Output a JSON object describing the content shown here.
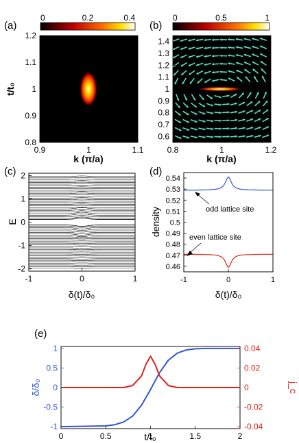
{
  "panels": {
    "a": {
      "label": "(a)"
    },
    "b": {
      "label": "(b)"
    },
    "c": {
      "label": "(c)"
    },
    "d": {
      "label": "(d)"
    },
    "e": {
      "label": "(e)"
    }
  },
  "colors": {
    "blue": "#2f55d6",
    "red": "#e0201b",
    "arrow": "#55e0c0",
    "axis": "#000000"
  },
  "chart_data": [
    {
      "panel": "a",
      "type": "heatmap",
      "xlabel": "k (π/a)",
      "ylabel": "t/t₀",
      "xlim": [
        0.9,
        1.1
      ],
      "ylim": [
        0.8,
        1.2
      ],
      "xticks": [
        "0.9",
        "1",
        "1.1"
      ],
      "yticks": [
        "0.8",
        "0.9",
        "1",
        "1.1",
        "1.2"
      ],
      "colorbar": {
        "ticks": [
          "0",
          "0.2",
          "0.4"
        ],
        "range": [
          0,
          0.4
        ],
        "colormap": "hot"
      },
      "peak": {
        "x": 1.0,
        "y": 1.0,
        "value": 0.4,
        "sigma_x": 0.012,
        "sigma_y": 0.03
      }
    },
    {
      "panel": "b",
      "type": "heatmap",
      "xlabel": "k (π/a)",
      "ylabel": "",
      "xlim": [
        0.8,
        1.2
      ],
      "ylim": [
        0.55,
        1.45
      ],
      "xticks": [
        "0.8",
        "1",
        "1.2"
      ],
      "yticks": [
        "0.6",
        "0.7",
        "0.8",
        "0.9",
        "1",
        "1.1",
        "1.2",
        "1.3",
        "1.4"
      ],
      "colorbar": {
        "ticks": [
          "0",
          "0.5",
          "1"
        ],
        "range": [
          0,
          1
        ],
        "colormap": "hot"
      },
      "peak": {
        "x": 1.0,
        "y": 1.0,
        "value": 1.0,
        "sigma_x": 0.04,
        "sigma_y": 0.006
      },
      "vector_field": "arrows circulating around (1, 1)"
    },
    {
      "panel": "c",
      "type": "line",
      "xlabel": "δ(t)/δ₀",
      "ylabel": "E",
      "xlim": [
        -1,
        1
      ],
      "ylim": [
        -2.1,
        2.1
      ],
      "xticks": [
        "-1",
        "0",
        "1"
      ],
      "yticks": [
        "-2",
        "-1",
        "0",
        "1",
        "2"
      ],
      "levels": {
        "count": 60,
        "range": [
          -2,
          2
        ],
        "gap": 0.12,
        "avoided_crossing": {
          "x": 0,
          "e": [
            0.12,
            -0.12
          ]
        }
      }
    },
    {
      "panel": "d",
      "type": "line",
      "xlabel": "δ(t)/δ₀",
      "ylabel": "density",
      "xlim": [
        -1,
        1
      ],
      "ylim": [
        0.455,
        0.545
      ],
      "xticks": [
        "-1",
        "0",
        "1"
      ],
      "yticks": [
        "0.46",
        "0.47",
        "0.48",
        "0.49",
        "0.5",
        "0.51",
        "0.52",
        "0.53",
        "0.54"
      ],
      "series": [
        {
          "name": "odd lattice site",
          "color": "#2f55d6",
          "baseline": 0.529,
          "peak": 0.541,
          "width": 0.08
        },
        {
          "name": "even lattice site",
          "color": "#e0201b",
          "baseline": 0.471,
          "peak": 0.459,
          "width": 0.08
        }
      ],
      "annotations": [
        "odd lattice site",
        "even lattice site"
      ]
    },
    {
      "panel": "e",
      "type": "line",
      "xlabel": "t/t₀",
      "ylabel": "δ/δ₀",
      "ylabel_right": "j_c",
      "xlim": [
        0,
        2
      ],
      "ylim": [
        -1.05,
        1.05
      ],
      "ylim_right": [
        -0.042,
        0.042
      ],
      "xticks": [
        "0",
        "0.5",
        "1",
        "1.5",
        "2"
      ],
      "yticks": [
        "-1",
        "-0.5",
        "0",
        "0.5",
        "1"
      ],
      "yticks_right": [
        "-0.04",
        "-0.02",
        "0",
        "0.02",
        "0.04"
      ],
      "series": [
        {
          "name": "δ/δ₀",
          "color": "#2f55d6",
          "axis": "left",
          "x": [
            0,
            0.5,
            0.6,
            0.7,
            0.8,
            0.9,
            1.0,
            1.1,
            1.2,
            1.3,
            1.4,
            1.5,
            1.6,
            2.0
          ],
          "values": [
            -1,
            -0.98,
            -0.95,
            -0.88,
            -0.73,
            -0.45,
            -0.05,
            0.38,
            0.7,
            0.88,
            0.96,
            0.99,
            1,
            1
          ]
        },
        {
          "name": "j_c",
          "color": "#e0201b",
          "axis": "right",
          "x": [
            0,
            0.7,
            0.8,
            0.9,
            0.95,
            1.0,
            1.05,
            1.1,
            1.2,
            1.3,
            2.0
          ],
          "values": [
            0,
            0,
            0.002,
            0.012,
            0.024,
            0.032,
            0.024,
            0.012,
            0.002,
            0,
            0
          ]
        }
      ]
    }
  ]
}
